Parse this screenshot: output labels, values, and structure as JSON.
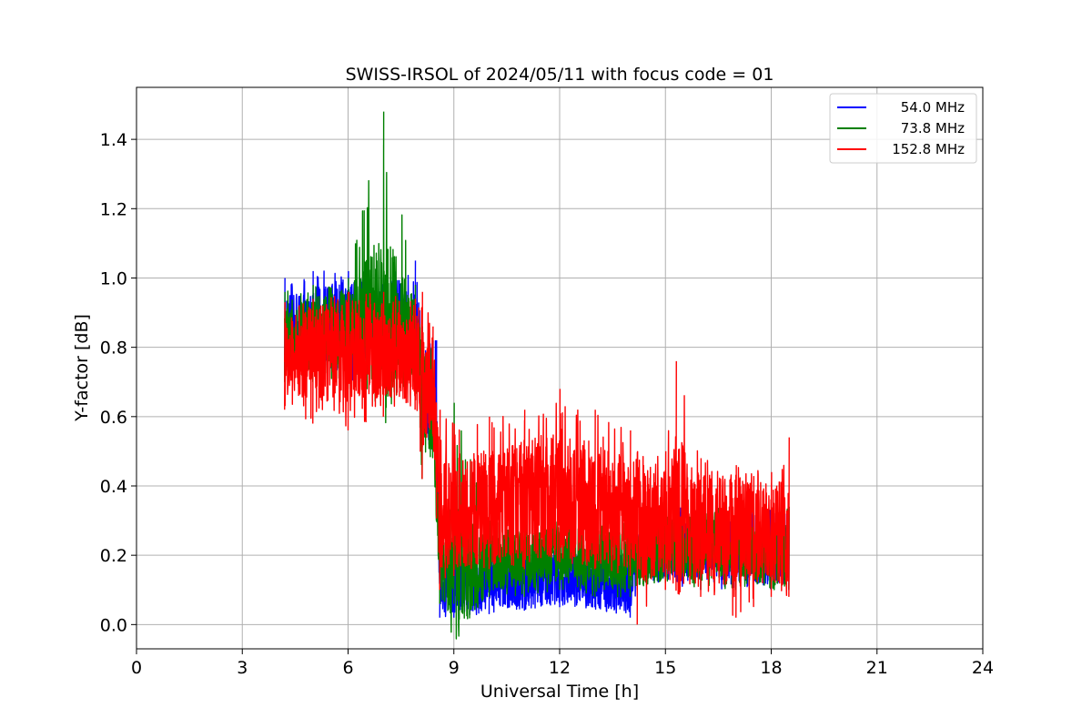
{
  "chart_data": {
    "type": "line",
    "title": "SWISS-IRSOL of 2024/05/11 with focus code = 01",
    "xlabel": "Universal Time [h]",
    "ylabel": "Y-factor [dB]",
    "xlim": [
      0,
      24
    ],
    "ylim": [
      -0.07,
      1.55
    ],
    "xticks": [
      0,
      3,
      6,
      9,
      12,
      15,
      18,
      21,
      24
    ],
    "yticks": [
      0.0,
      0.2,
      0.4,
      0.6,
      0.8,
      1.0,
      1.2,
      1.4
    ],
    "grid": true,
    "legend_position": "top-right",
    "series": [
      {
        "name": "54.0 MHz",
        "color": "#0000ff",
        "data": [
          [
            4.2,
            0.84,
            0.72,
            1.0
          ],
          [
            5.0,
            0.86,
            0.72,
            1.02
          ],
          [
            6.0,
            0.87,
            0.7,
            1.02
          ],
          [
            7.0,
            0.88,
            0.72,
            1.0
          ],
          [
            7.9,
            0.88,
            0.72,
            1.05
          ],
          [
            8.1,
            0.66,
            0.56,
            0.84
          ],
          [
            8.4,
            0.62,
            0.5,
            0.82
          ],
          [
            8.5,
            0.6,
            0.52,
            0.82
          ],
          [
            8.6,
            0.1,
            0.02,
            0.2
          ],
          [
            9.0,
            0.11,
            0.02,
            0.22
          ],
          [
            10.0,
            0.12,
            0.03,
            0.24
          ],
          [
            11.0,
            0.12,
            0.04,
            0.25
          ],
          [
            12.0,
            0.14,
            0.05,
            0.26
          ],
          [
            13.0,
            0.12,
            0.05,
            0.26
          ],
          [
            14.0,
            0.12,
            0.02,
            0.26
          ],
          [
            14.2,
            0.2,
            0.1,
            0.26
          ],
          [
            15.0,
            0.22,
            0.12,
            0.36
          ],
          [
            16.0,
            0.22,
            0.1,
            0.34
          ],
          [
            17.0,
            0.22,
            0.1,
            0.34
          ],
          [
            18.0,
            0.2,
            0.1,
            0.34
          ],
          [
            18.5,
            0.2,
            0.1,
            0.34
          ]
        ]
      },
      {
        "name": "73.8 MHz",
        "color": "#008000",
        "data": [
          [
            4.2,
            0.82,
            0.7,
            0.96
          ],
          [
            5.0,
            0.84,
            0.7,
            0.98
          ],
          [
            6.0,
            0.85,
            0.68,
            1.0
          ],
          [
            6.2,
            0.86,
            0.7,
            1.1
          ],
          [
            7.0,
            0.86,
            0.7,
            1.48
          ],
          [
            7.9,
            0.84,
            0.7,
            0.98
          ],
          [
            8.1,
            0.66,
            0.42,
            0.86
          ],
          [
            8.4,
            0.62,
            0.48,
            0.82
          ],
          [
            8.6,
            0.16,
            0.06,
            0.26
          ],
          [
            9.0,
            0.16,
            0.06,
            0.64
          ],
          [
            10.0,
            0.18,
            0.08,
            0.3
          ],
          [
            11.0,
            0.19,
            0.08,
            0.3
          ],
          [
            12.0,
            0.21,
            0.1,
            0.32
          ],
          [
            13.0,
            0.19,
            0.08,
            0.3
          ],
          [
            14.0,
            0.18,
            0.08,
            0.3
          ],
          [
            15.0,
            0.22,
            0.12,
            0.36
          ],
          [
            16.0,
            0.22,
            0.1,
            0.34
          ],
          [
            17.0,
            0.22,
            0.1,
            0.34
          ],
          [
            18.0,
            0.2,
            0.1,
            0.34
          ],
          [
            18.5,
            0.2,
            0.1,
            0.34
          ]
        ]
      },
      {
        "name": "152.8 MHz",
        "color": "#ff0000",
        "data": [
          [
            4.2,
            0.77,
            0.62,
            0.93
          ],
          [
            5.0,
            0.78,
            0.58,
            0.94
          ],
          [
            6.0,
            0.79,
            0.56,
            0.96
          ],
          [
            7.0,
            0.79,
            0.6,
            0.96
          ],
          [
            7.9,
            0.77,
            0.62,
            0.94
          ],
          [
            8.1,
            0.7,
            0.42,
            0.96
          ],
          [
            8.4,
            0.68,
            0.55,
            0.86
          ],
          [
            8.6,
            0.35,
            0.1,
            0.62
          ],
          [
            9.0,
            0.33,
            0.14,
            0.58
          ],
          [
            10.0,
            0.34,
            0.16,
            0.6
          ],
          [
            11.0,
            0.36,
            0.16,
            0.62
          ],
          [
            12.0,
            0.38,
            0.18,
            0.68
          ],
          [
            13.0,
            0.35,
            0.16,
            0.62
          ],
          [
            14.0,
            0.32,
            0.14,
            0.56
          ],
          [
            14.2,
            0.3,
            0.0,
            0.5
          ],
          [
            15.0,
            0.3,
            0.1,
            0.5
          ],
          [
            15.3,
            0.32,
            0.12,
            0.76
          ],
          [
            16.0,
            0.28,
            0.08,
            0.48
          ],
          [
            17.0,
            0.27,
            0.02,
            0.46
          ],
          [
            18.0,
            0.26,
            0.08,
            0.44
          ],
          [
            18.5,
            0.26,
            0.08,
            0.54
          ]
        ]
      }
    ]
  }
}
